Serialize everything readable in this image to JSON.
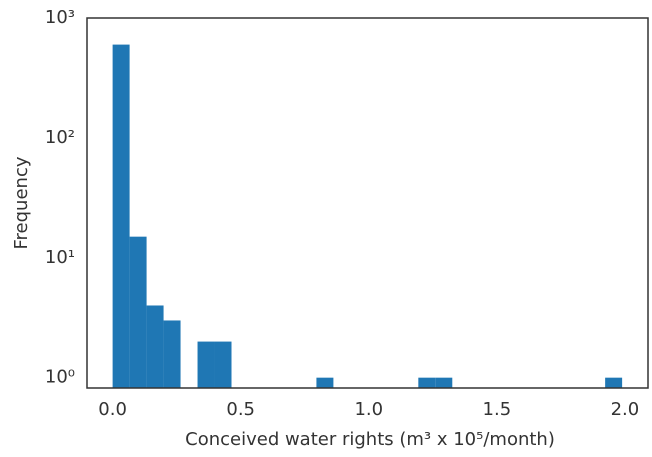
{
  "chart_data": {
    "type": "histogram",
    "xlabel": "Conceived water rights (m³ x 10⁵/month)",
    "ylabel": "Frequency",
    "bins": [
      0,
      0.0663,
      0.1326,
      0.1989,
      0.2652,
      0.3315,
      0.3978,
      0.4641,
      0.5304,
      0.5967,
      0.663,
      0.7293,
      0.7956,
      0.8619,
      0.9282,
      0.9945,
      1.0608,
      1.1271,
      1.1934,
      1.2597,
      1.326,
      1.3923,
      1.4586,
      1.5249,
      1.5912,
      1.6575,
      1.7238,
      1.7901,
      1.8564,
      1.9227,
      1.989
    ],
    "values": [
      600,
      15,
      4,
      3,
      0,
      2,
      2,
      0,
      0,
      0,
      0,
      0,
      1,
      0,
      0,
      0,
      0,
      0,
      1,
      1,
      0,
      0,
      0,
      0,
      0,
      0,
      0,
      0,
      0,
      1
    ],
    "color": "#1f77b4",
    "xlim": [
      -0.1,
      2.09
    ],
    "xticks": [
      {
        "value": 0,
        "label": "0.0"
      },
      0.5,
      {
        "value": 1,
        "label": "1.0"
      },
      1.5,
      {
        "value": 2,
        "label": "2.0"
      }
    ],
    "ylim": [
      0.82,
      1000
    ],
    "yticks": [
      {
        "value": 1,
        "label": "10⁰"
      },
      {
        "value": 10,
        "label": "10¹"
      },
      {
        "value": 100,
        "label": "10²"
      },
      {
        "value": 1000,
        "label": "10³"
      }
    ],
    "log_y": true,
    "grid": false
  }
}
